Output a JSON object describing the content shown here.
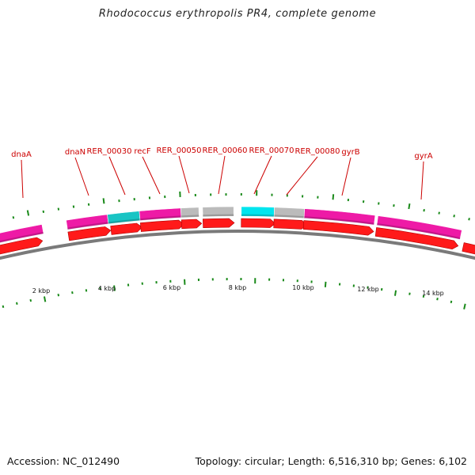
{
  "title": "Rhodococcus erythropolis PR4, complete genome",
  "accession_text": "Accession: NC_012490",
  "summary_text": "Topology: circular; Length: 6,516,310 bp; Genes: 6,102",
  "colors": {
    "label": "#cc0000",
    "tick": "#1a8a1a",
    "backbone": "#7a7a7a",
    "cds": "#ff1a1a",
    "gene_pink": "#ee1aa6",
    "gene_teal": "#19c4c4",
    "gene_cyan": "#00e5ee",
    "gene_gray": "#bbbbbb"
  },
  "scale": {
    "kbp_per_unit": 2,
    "labels": [
      "2 kbp",
      "4 kbp",
      "6 kbp",
      "8 kbp",
      "10 kbp",
      "12 kbp",
      "14 kbp"
    ]
  },
  "gene_labels": [
    "dnaA",
    "dnaN",
    "RER_00030",
    "recF",
    "RER_00050",
    "RER_00060",
    "RER_00070",
    "RER_00080",
    "gyrB",
    "gyrA"
  ],
  "gene_blocks": [
    {
      "color": "gene_pink"
    },
    {
      "color": "gene_pink"
    },
    {
      "color": "gene_teal"
    },
    {
      "color": "gene_pink"
    },
    {
      "color": "gene_gray"
    },
    {
      "color": "gene_gray"
    },
    {
      "color": "gene_cyan"
    },
    {
      "color": "gene_gray"
    },
    {
      "color": "gene_pink"
    },
    {
      "color": "gene_pink"
    }
  ]
}
